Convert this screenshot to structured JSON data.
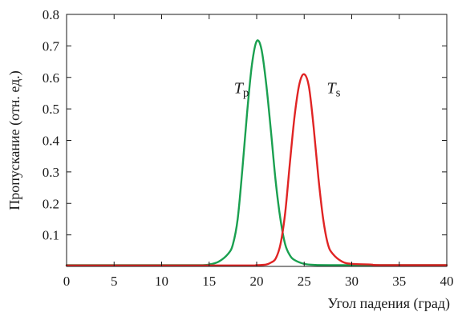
{
  "chart_data": {
    "type": "line",
    "xlabel": "Угол падения (град)",
    "ylabel": "Пропускание (отн. ед.)",
    "xlim": [
      0,
      40
    ],
    "ylim": [
      0,
      0.8
    ],
    "xticks": [
      0,
      5,
      10,
      15,
      20,
      25,
      30,
      35,
      40
    ],
    "xtick_labels": [
      "0",
      "5",
      "10",
      "15",
      "20",
      "25",
      "30",
      "35",
      "40"
    ],
    "yticks": [
      0.1,
      0.2,
      0.3,
      0.4,
      0.5,
      0.6,
      0.7,
      0.8
    ],
    "ytick_labels": [
      "0.1",
      "0.2",
      "0.3",
      "0.4",
      "0.5",
      "0.6",
      "0.7",
      "0.8"
    ],
    "grid": false,
    "series": [
      {
        "color": "#1aa050",
        "x": [
          0,
          10,
          14,
          15,
          16,
          17,
          17.5,
          18,
          18.5,
          19,
          19.5,
          20,
          20.5,
          21,
          21.5,
          22,
          22.5,
          23,
          23.5,
          24,
          25,
          26,
          28,
          40
        ],
        "y": [
          0.004,
          0.004,
          0.004,
          0.006,
          0.015,
          0.04,
          0.07,
          0.15,
          0.31,
          0.49,
          0.64,
          0.715,
          0.69,
          0.58,
          0.43,
          0.27,
          0.15,
          0.07,
          0.035,
          0.02,
          0.008,
          0.005,
          0.004,
          0.004
        ]
      },
      {
        "color": "#e02424",
        "x": [
          0,
          18,
          20,
          21,
          21.5,
          22,
          22.5,
          23,
          23.5,
          24,
          24.5,
          25,
          25.5,
          26,
          26.5,
          27,
          27.5,
          28,
          29,
          30,
          32,
          33,
          40
        ],
        "y": [
          0.003,
          0.003,
          0.004,
          0.006,
          0.012,
          0.025,
          0.07,
          0.17,
          0.33,
          0.48,
          0.58,
          0.61,
          0.57,
          0.44,
          0.28,
          0.15,
          0.07,
          0.04,
          0.015,
          0.008,
          0.006,
          0.004,
          0.004
        ]
      }
    ],
    "annotations": [
      {
        "main": "T",
        "sub": "p",
        "x": 18.4,
        "y": 0.55
      },
      {
        "main": "T",
        "sub": "s",
        "x": 28.1,
        "y": 0.55
      }
    ]
  }
}
